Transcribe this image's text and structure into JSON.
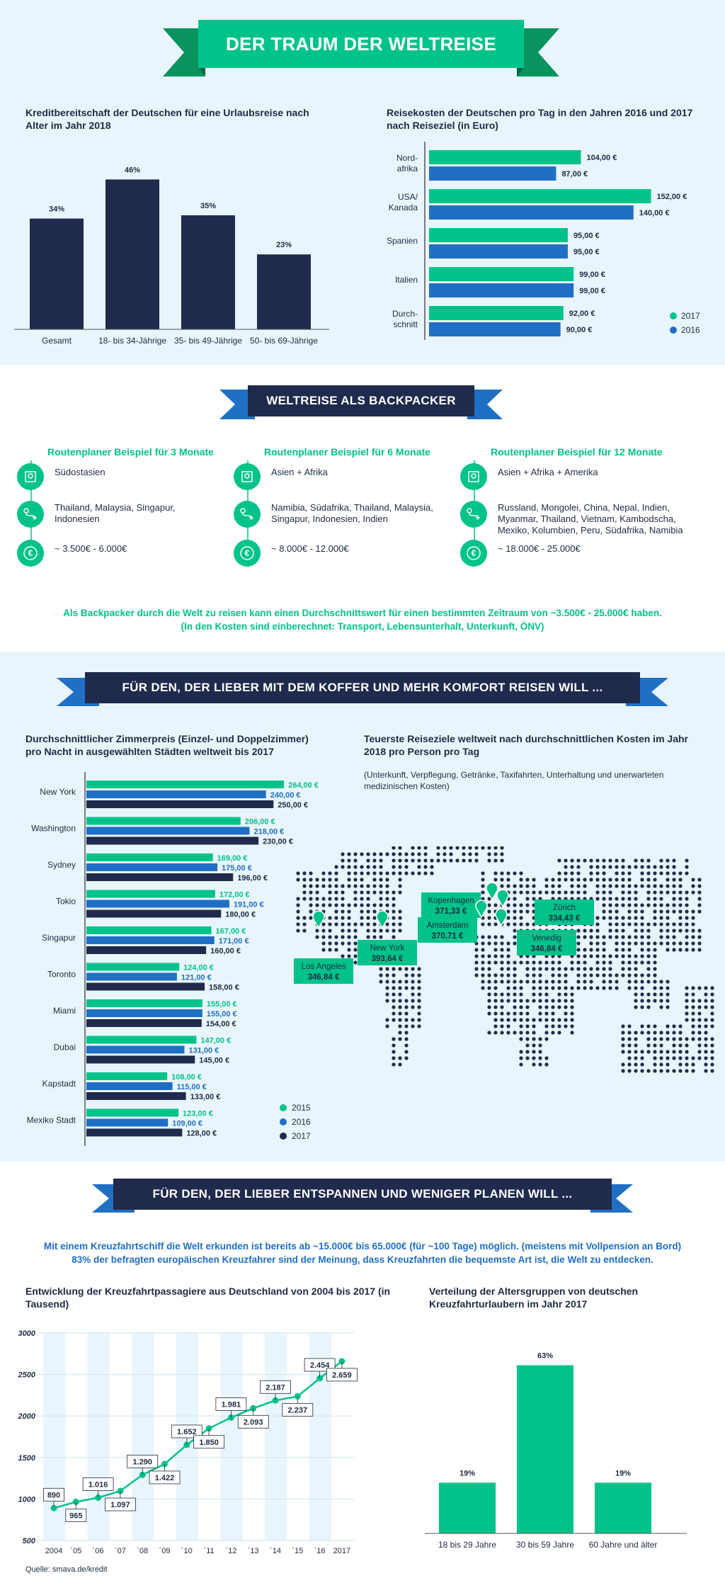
{
  "header": {
    "title": "DER TRAUM DER WELTREISE"
  },
  "credit": {
    "title": "Kreditbereitschaft der Deutschen für eine Urlaubsreise nach Alter im Jahr 2018"
  },
  "costs": {
    "title": "Reisekosten der Deutschen pro Tag in den Jahren 2016 und 2017 nach Reiseziel (in Euro)"
  },
  "backpacker": {
    "banner": "WELTREISE ALS BACKPACKER",
    "columns": [
      {
        "title": "Routenplaner Beispiel für 3 Monate",
        "region": "Südostasien",
        "countries": "Thailand, Malaysia, Singapur, Indonesien",
        "cost": "~ 3.500€ - 6.000€"
      },
      {
        "title": "Routenplaner Beispiel für 6 Monate",
        "region": "Asien + Afrika",
        "countries": "Namibia, Südafrika, Thailand, Malaysia, Singapur, Indonesien, Indien",
        "cost": "~ 8.000€ - 12.000€"
      },
      {
        "title": "Routenplaner Beispiel für 12 Monate",
        "region": "Asien + Afrika + Amerika",
        "countries": "Russland, Mongolei, China, Nepal, Indien, Myanmar, Thailand, Vietnam, Kambodscha, Mexiko, Kolumbien, Peru, Südafrika, Namibia",
        "cost": "~ 18.000€ - 25.000€"
      }
    ],
    "note1": "Als Backpacker durch die Welt zu reisen kann einen Durchschnittswert für einen bestimmten Zeitraum von ~3.500€ - 25.000€ haben.",
    "note2": "(In den Kosten sind einberechnet: Transport, Lebensunterhalt, Unterkunft, ÖNV)"
  },
  "comfort": {
    "banner": "FÜR DEN, DER LIEBER MIT DEM KOFFER UND MEHR KOMFORT REISEN WILL ...",
    "hotel_title": "Durchschnittlicher Zimmerpreis (Einzel- und Doppelzimmer) pro Nacht in ausgewählten Städten weltweit bis 2017",
    "map_title": "Teuerste Reiseziele weltweit nach durchschnittlichen Kosten im Jahr 2018 pro Person pro Tag",
    "map_note": "(Unterkunft, Verpflegung, Getränke, Taxifahrten, Unterhaltung und unerwarteten medizinischen Kosten)",
    "markers": [
      {
        "city": "Kopenhagen",
        "value": "371,33 €"
      },
      {
        "city": "Amsterdam",
        "value": "370,71 €"
      },
      {
        "city": "Zürich",
        "value": "334,43 €"
      },
      {
        "city": "Venedig",
        "value": "346,84 €"
      },
      {
        "city": "New York",
        "value": "393,64 €"
      },
      {
        "city": "Los Angeles",
        "value": "346,84 €"
      }
    ]
  },
  "cruise": {
    "banner": "FÜR DEN, DER LIEBER ENTSPANNEN UND WENIGER PLANEN WILL ...",
    "intro1": "Mit einem Kreuzfahrtschiff die Welt erkunden ist bereits ab ~15.000€ bis 65.000€ (für ~100 Tage) möglich. (meistens mit Vollpension an Bord)",
    "intro2": "83% der befragten europäischen Kreuzfahrer sind der Meinung, dass Kreuzfahrten die bequemste Art ist, die Welt zu entdecken.",
    "line_title": "Entwicklung der Kreuzfahrtpassagiere aus Deutschland von 2004 bis 2017 (in Tausend)",
    "age_title": "Verteilung der Altersgruppen von deutschen Kreuzfahrturlaubern im Jahr 2017"
  },
  "source": "Quelle: smava.de/kredit",
  "colors": {
    "green": "#00c389",
    "blue": "#1f6fc5",
    "navy": "#1f2a4d",
    "bg": "#e9f5fc"
  },
  "chart_data": [
    {
      "type": "bar",
      "title": "Kreditbereitschaft der Deutschen für eine Urlaubsreise nach Alter im Jahr 2018",
      "categories": [
        "Gesamt",
        "18- bis 34-Jährige",
        "35- bis 49-Jährige",
        "50- bis 69-Jährige"
      ],
      "values": [
        34,
        46,
        35,
        23
      ],
      "labels": [
        "34%",
        "46%",
        "35%",
        "23%"
      ],
      "ylim": [
        0,
        50
      ]
    },
    {
      "type": "bar",
      "orientation": "horizontal",
      "title": "Reisekosten der Deutschen pro Tag in den Jahren 2016 und 2017 nach Reiseziel (in Euro)",
      "categories": [
        "Nord-afrika",
        "USA/ Kanada",
        "Spanien",
        "Italien",
        "Durch-schnitt"
      ],
      "series": [
        {
          "name": "2017",
          "values": [
            104,
            152,
            95,
            99,
            92
          ],
          "labels": [
            "104,00 €",
            "152,00 €",
            "95,00 €",
            "99,00 €",
            "92,00 €"
          ]
        },
        {
          "name": "2016",
          "values": [
            87,
            140,
            95,
            99,
            90
          ],
          "labels": [
            "87,00 €",
            "140,00 €",
            "95,00 €",
            "99,00 €",
            "90,00 €"
          ]
        }
      ],
      "xlim": [
        0,
        160
      ],
      "legend": "bottom-right"
    },
    {
      "type": "bar",
      "orientation": "horizontal",
      "title": "Durchschnittlicher Zimmerpreis (Einzel- und Doppelzimmer) pro Nacht in ausgewählten Städten weltweit bis 2017",
      "categories": [
        "New York",
        "Washington",
        "Sydney",
        "Tokio",
        "Singapur",
        "Toronto",
        "Miami",
        "Dubai",
        "Kapstadt",
        "Mexiko Stadt"
      ],
      "series": [
        {
          "name": "2015",
          "values": [
            264,
            206,
            169,
            172,
            167,
            124,
            155,
            147,
            108,
            123
          ],
          "labels": [
            "264,00 €",
            "206,00 €",
            "169,00 €",
            "172,00 €",
            "167,00 €",
            "124,00 €",
            "155,00 €",
            "147,00 €",
            "108,00 €",
            "123,00 €"
          ]
        },
        {
          "name": "2016",
          "values": [
            240,
            218,
            175,
            191,
            171,
            121,
            155,
            131,
            115,
            109
          ],
          "labels": [
            "240,00 €",
            "218,00 €",
            "175,00 €",
            "191,00 €",
            "171,00 €",
            "121,00 €",
            "155,00 €",
            "131,00 €",
            "115,00 €",
            "109,00 €"
          ]
        },
        {
          "name": "2017",
          "values": [
            250,
            230,
            196,
            180,
            160,
            158,
            154,
            145,
            133,
            128
          ],
          "labels": [
            "250,00 €",
            "230,00 €",
            "196,00 €",
            "180,00 €",
            "160,00 €",
            "158,00 €",
            "154,00 €",
            "145,00 €",
            "133,00 €",
            "128,00 €"
          ]
        }
      ],
      "xlim": [
        0,
        280
      ],
      "legend": "bottom-right"
    },
    {
      "type": "line",
      "title": "Entwicklung der Kreuzfahrtpassagiere aus Deutschland von 2004 bis 2017 (in Tausend)",
      "x": [
        "2004",
        "´05",
        "´06",
        "´07",
        "´08",
        "´09",
        "´10",
        "´11",
        "´12",
        "´13",
        "´14",
        "´15",
        "´16",
        "2017"
      ],
      "values": [
        890,
        965,
        1016,
        1097,
        1290,
        1422,
        1652,
        1850,
        1981,
        2093,
        2187,
        2237,
        2454,
        2659
      ],
      "labels": [
        "890",
        "965",
        "1.016",
        "1.097",
        "1.290",
        "1.422",
        "1.652",
        "1.850",
        "1.981",
        "2.093",
        "2.187",
        "2.237",
        "2.454",
        "2.659"
      ],
      "yticks": [
        "500",
        "1000",
        "1500",
        "2000",
        "2500",
        "3000"
      ],
      "ylim": [
        500,
        3000
      ],
      "grid": true
    },
    {
      "type": "bar",
      "title": "Verteilung der Altersgruppen von deutschen Kreuzfahrturlaubern im Jahr 2017",
      "categories": [
        "18 bis 29 Jahre",
        "30 bis 59 Jahre",
        "60 Jahre und älter"
      ],
      "values": [
        19,
        63,
        19
      ],
      "labels": [
        "19%",
        "63%",
        "19%"
      ],
      "ylim": [
        0,
        65
      ]
    }
  ]
}
